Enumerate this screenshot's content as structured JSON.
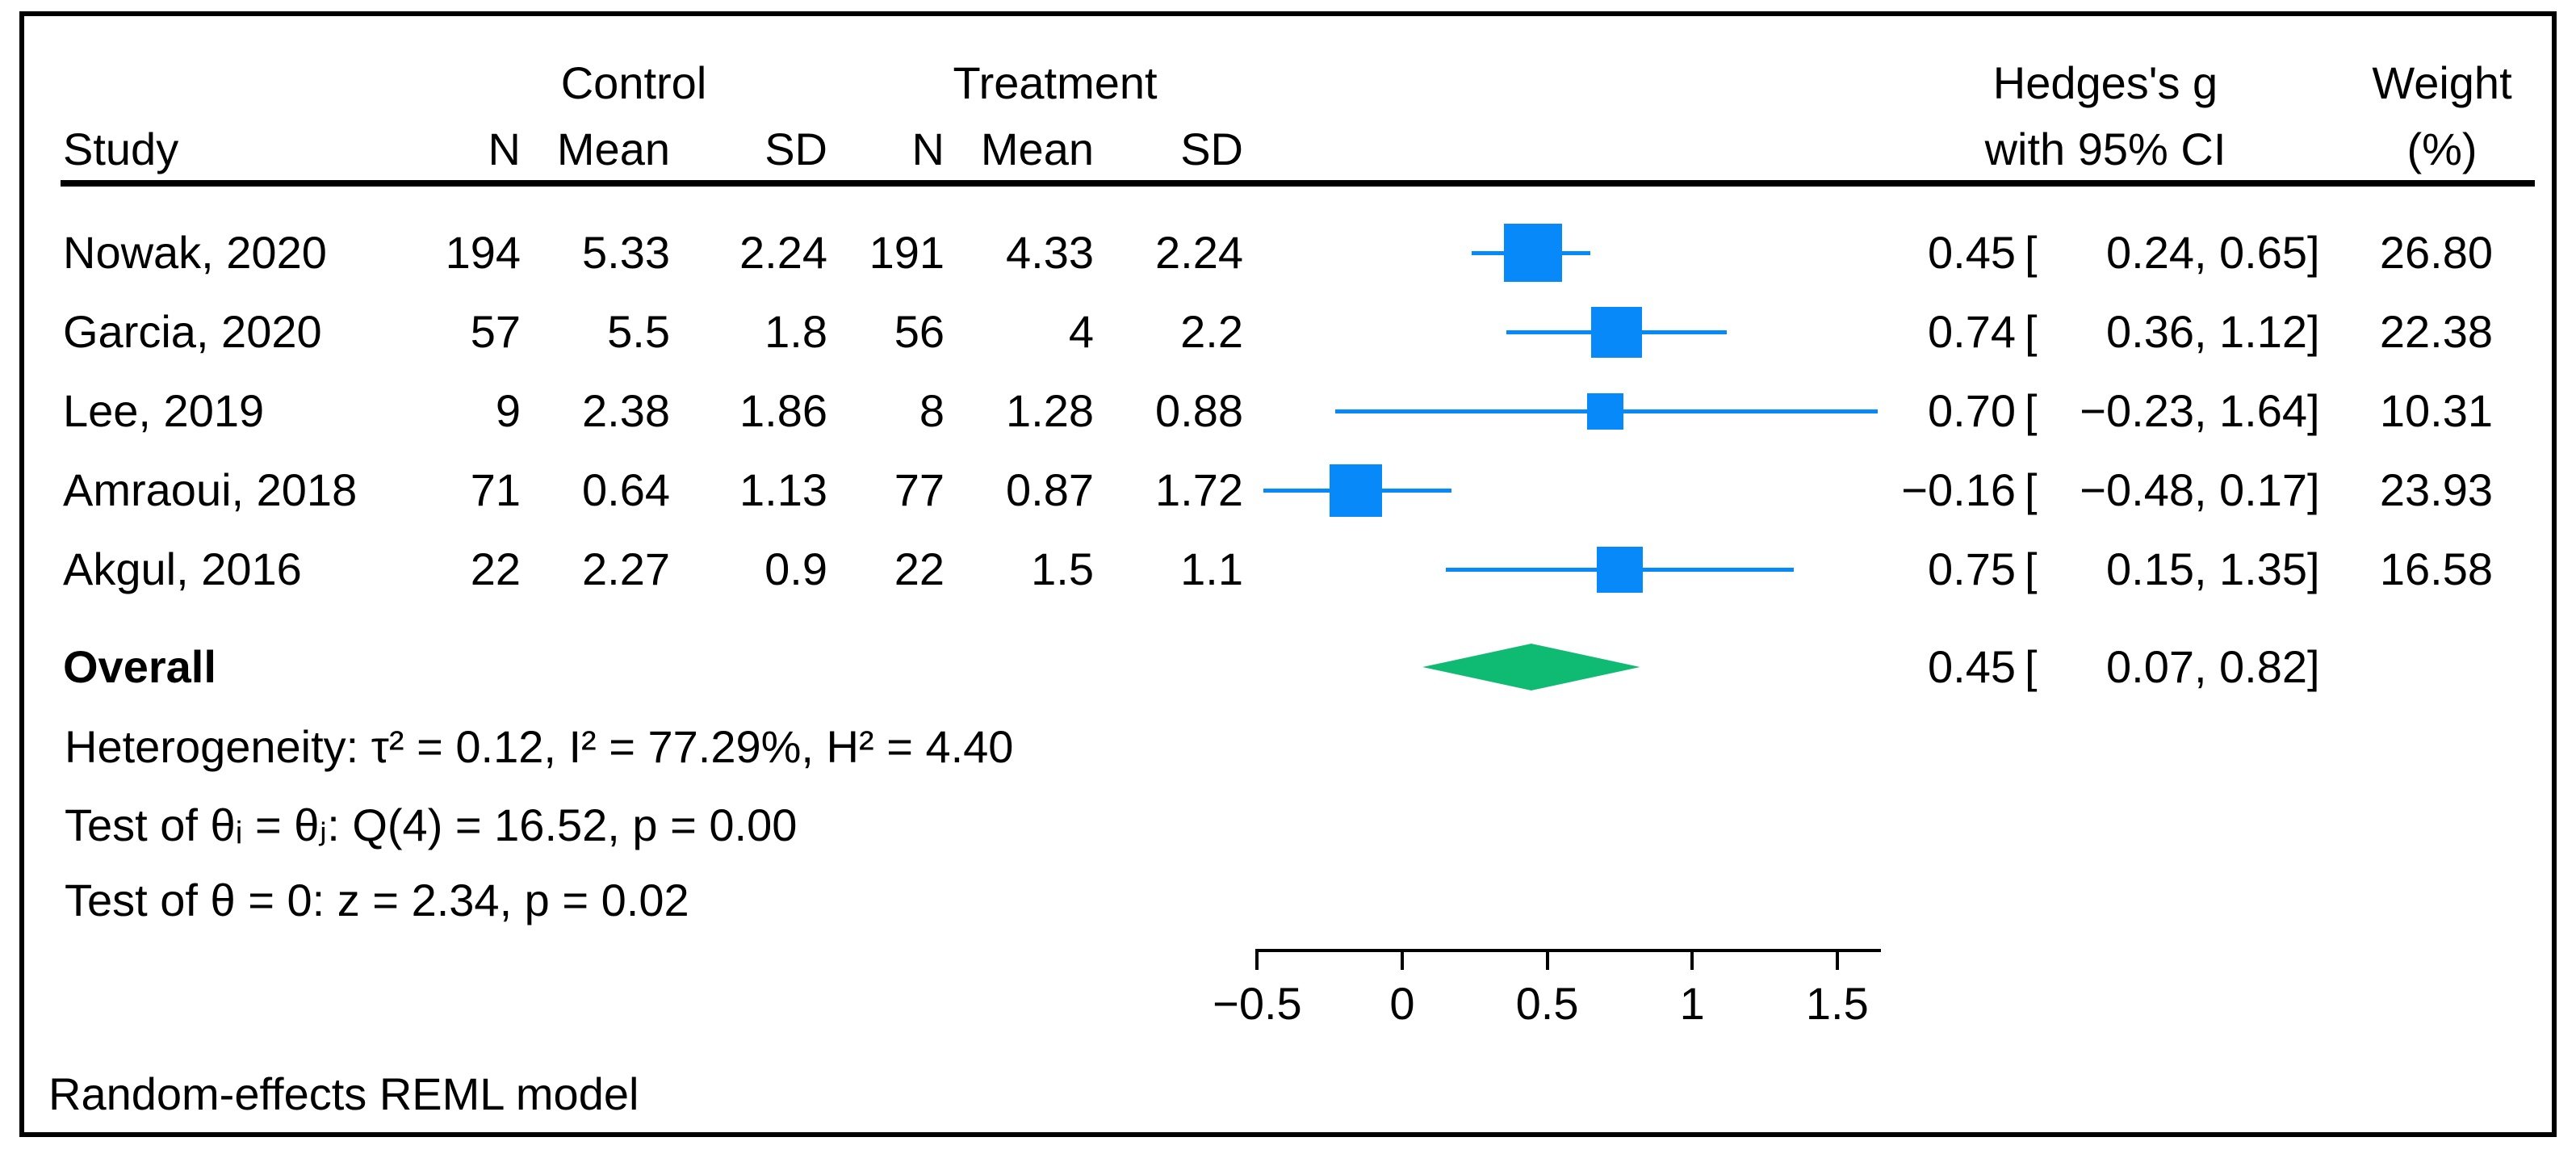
{
  "colors": {
    "marker_blue": "#0789FA",
    "diamond_green": "#0FBA73",
    "text": "#000000",
    "frame": "#000000"
  },
  "header": {
    "study": "Study",
    "control_group": "Control",
    "treatment_group": "Treatment",
    "n1": "N",
    "mean1": "Mean",
    "sd1": "SD",
    "n2": "N",
    "mean2": "Mean",
    "sd2": "SD",
    "effect_line1": "Hedges's g",
    "effect_line2": "with 95% CI",
    "weight_line1": "Weight",
    "weight_line2": "(%)"
  },
  "format": {
    "open_bracket": "[",
    "comma": ",",
    "close_bracket": "]"
  },
  "chart_data": {
    "type": "forest",
    "effect_measure": "Hedges's g",
    "x_axis": {
      "ticks": [
        -0.5,
        0,
        0.5,
        1,
        1.5
      ],
      "tick_labels": [
        "−0.5",
        "0",
        "0.5",
        "1",
        "1.5"
      ],
      "range_shown": [
        -0.5,
        1.65
      ]
    },
    "studies": [
      {
        "study": "Nowak, 2020",
        "control": {
          "n": "194",
          "mean": "5.33",
          "sd": "2.24"
        },
        "treatment": {
          "n": "191",
          "mean": "4.33",
          "sd": "2.24"
        },
        "est": 0.45,
        "lo": 0.24,
        "hi": 0.65,
        "est_label": "0.45",
        "lo_label": "0.24",
        "hi_label": "0.65",
        "weight": "26.80",
        "marker_px": 72
      },
      {
        "study": "Garcia, 2020",
        "control": {
          "n": "57",
          "mean": "5.5",
          "sd": "1.8"
        },
        "treatment": {
          "n": "56",
          "mean": "4",
          "sd": "2.2"
        },
        "est": 0.74,
        "lo": 0.36,
        "hi": 1.12,
        "est_label": "0.74",
        "lo_label": "0.36",
        "hi_label": "1.12",
        "weight": "22.38",
        "marker_px": 63
      },
      {
        "study": "Lee, 2019",
        "control": {
          "n": "9",
          "mean": "2.38",
          "sd": "1.86"
        },
        "treatment": {
          "n": "8",
          "mean": "1.28",
          "sd": "0.88"
        },
        "est": 0.7,
        "lo": -0.23,
        "hi": 1.64,
        "est_label": "0.70",
        "lo_label": "−0.23",
        "hi_label": "1.64",
        "weight": "10.31",
        "marker_px": 45
      },
      {
        "study": "Amraoui, 2018",
        "control": {
          "n": "71",
          "mean": "0.64",
          "sd": "1.13"
        },
        "treatment": {
          "n": "77",
          "mean": "0.87",
          "sd": "1.72"
        },
        "est": -0.16,
        "lo": -0.48,
        "hi": 0.17,
        "est_label": "−0.16",
        "lo_label": "−0.48",
        "hi_label": "0.17",
        "weight": "23.93",
        "marker_px": 65
      },
      {
        "study": "Akgul, 2016",
        "control": {
          "n": "22",
          "mean": "2.27",
          "sd": "0.9"
        },
        "treatment": {
          "n": "22",
          "mean": "1.5",
          "sd": "1.1"
        },
        "est": 0.75,
        "lo": 0.15,
        "hi": 1.35,
        "est_label": "0.75",
        "lo_label": "0.15",
        "hi_label": "1.35",
        "weight": "16.58",
        "marker_px": 57
      }
    ],
    "overall": {
      "label": "Overall",
      "est": 0.45,
      "lo": 0.07,
      "hi": 0.82,
      "est_label": "0.45",
      "lo_label": "0.07",
      "hi_label": "0.82"
    },
    "heterogeneity": "Heterogeneity: τ² = 0.12, I² = 77.29%, H² = 4.40",
    "test_group": "Test of θᵢ = θⱼ: Q(4) = 16.52, p = 0.00",
    "test_zero": "Test of θ = 0: z = 2.34, p = 0.02",
    "footer": "Random-effects REML model"
  }
}
